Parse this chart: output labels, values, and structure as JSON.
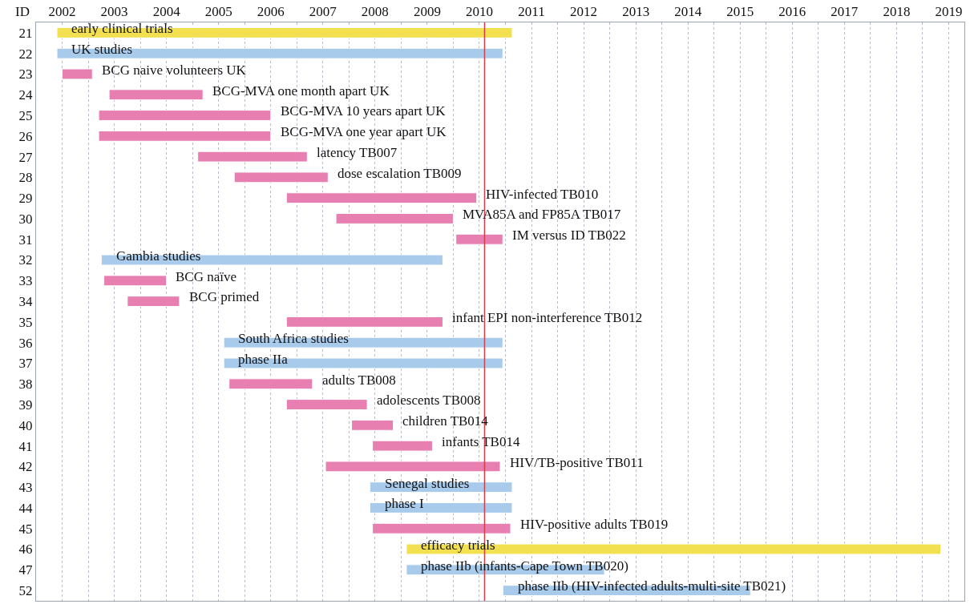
{
  "chart_data": {
    "type": "bar",
    "orientation": "horizontal",
    "ylabel": "ID",
    "categories": [
      "21",
      "22",
      "23",
      "24",
      "25",
      "26",
      "27",
      "28",
      "29",
      "30",
      "31",
      "32",
      "33",
      "34",
      "35",
      "36",
      "37",
      "38",
      "39",
      "40",
      "41",
      "42",
      "43",
      "44",
      "45",
      "46",
      "47",
      "52"
    ],
    "base": [
      2002.4,
      2002.4,
      2002.5,
      2003.4,
      2003.2,
      2003.2,
      2005.1,
      2005.8,
      2006.8,
      2007.75,
      2010.05,
      2003.25,
      2003.3,
      2003.75,
      2006.8,
      2005.6,
      2005.6,
      2005.7,
      2006.8,
      2008.05,
      2008.45,
      2007.55,
      2008.4,
      2008.4,
      2008.45,
      2009.1,
      2009.1,
      2010.95
    ],
    "values": [
      8.73,
      8.55,
      0.58,
      1.8,
      3.3,
      3.3,
      2.1,
      1.8,
      3.65,
      2.25,
      0.9,
      6.55,
      1.2,
      1.0,
      3.0,
      5.35,
      5.35,
      1.6,
      1.55,
      0.8,
      1.15,
      3.35,
      2.73,
      2.73,
      2.65,
      10.25,
      3.8,
      4.75
    ],
    "colors": [
      "#f2e050",
      "#a8cbec",
      "#e77fb0",
      "#e77fb0",
      "#e77fb0",
      "#e77fb0",
      "#e77fb0",
      "#e77fb0",
      "#e77fb0",
      "#e77fb0",
      "#e77fb0",
      "#a8cbec",
      "#e77fb0",
      "#e77fb0",
      "#e77fb0",
      "#a8cbec",
      "#a8cbec",
      "#e77fb0",
      "#e77fb0",
      "#e77fb0",
      "#e77fb0",
      "#e77fb0",
      "#a8cbec",
      "#a8cbec",
      "#e77fb0",
      "#f2e050",
      "#a8cbec",
      "#a8cbec"
    ],
    "xlim": [
      2002,
      2019.8
    ],
    "xticks": [
      {
        "value": 2002,
        "label": null
      },
      {
        "value": 2002.5,
        "label": "2002"
      },
      {
        "value": 2003,
        "label": null
      },
      {
        "value": 2003.5,
        "label": "2003"
      },
      {
        "value": 2004,
        "label": null
      },
      {
        "value": 2004.5,
        "label": "2004"
      },
      {
        "value": 2005,
        "label": null
      },
      {
        "value": 2005.5,
        "label": "2005"
      },
      {
        "value": 2006,
        "label": null
      },
      {
        "value": 2006.5,
        "label": "2006"
      },
      {
        "value": 2007,
        "label": null
      },
      {
        "value": 2007.5,
        "label": "2007"
      },
      {
        "value": 2008,
        "label": null
      },
      {
        "value": 2008.5,
        "label": "2008"
      },
      {
        "value": 2009,
        "label": null
      },
      {
        "value": 2009.5,
        "label": "2009"
      },
      {
        "value": 2010,
        "label": null
      },
      {
        "value": 2010.5,
        "label": "2010"
      },
      {
        "value": 2011,
        "label": null
      },
      {
        "value": 2011.5,
        "label": "2011"
      },
      {
        "value": 2012,
        "label": null
      },
      {
        "value": 2012.5,
        "label": "2012"
      },
      {
        "value": 2013,
        "label": null
      },
      {
        "value": 2013.5,
        "label": "2013"
      },
      {
        "value": 2014,
        "label": null
      },
      {
        "value": 2014.5,
        "label": "2014"
      },
      {
        "value": 2015,
        "label": null
      },
      {
        "value": 2015.5,
        "label": "2015"
      },
      {
        "value": 2016,
        "label": null
      },
      {
        "value": 2016.5,
        "label": "2016"
      },
      {
        "value": 2017,
        "label": null
      },
      {
        "value": 2017.5,
        "label": "2017"
      },
      {
        "value": 2018,
        "label": null
      },
      {
        "value": 2018.5,
        "label": "2018"
      },
      {
        "value": 2019,
        "label": null
      },
      {
        "value": 2019.5,
        "label": "2019"
      }
    ],
    "grid": "x",
    "ref_lines": [
      {
        "axis": "x",
        "value": 2010.6,
        "color": "#d0404a"
      }
    ],
    "annotations": [
      "early clinical trials",
      "UK studies",
      "BCG naive volunteers UK",
      "BCG-MVA one month apart UK",
      "BCG-MVA 10 years apart UK",
      "BCG-MVA one year apart UK",
      "latency TB007",
      "dose escalation TB009",
      "HIV-infected TB010",
      "MVA85A and FP85A TB017",
      "IM versus ID TB022",
      "Gambia studies",
      "BCG naïve",
      "BCG primed",
      "infant EPI non-interference TB012",
      "South Africa studies",
      "phase IIa",
      "adults TB008",
      "adolescents TB008",
      "children TB014",
      "infants TB014",
      "HIV/TB-positive TB011",
      "Senegal studies",
      "phase I",
      "HIV-positive adults TB019",
      "efficacy trials",
      "phase IIb (infants-Cape Town TB020)",
      "phase IIb (HIV-infected adults-multi-site TB021)"
    ]
  }
}
